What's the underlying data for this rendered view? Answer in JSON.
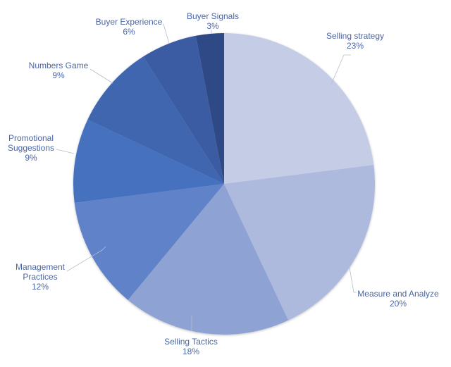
{
  "chart_data": {
    "type": "pie",
    "title": "",
    "start_angle_deg": 0,
    "direction": "clockwise",
    "categories": [
      "Selling strategy",
      "Measure and Analyze",
      "Selling Tactics",
      "Management Practices",
      "Promotional Suggestions",
      "Numbers Game",
      "Buyer Experience",
      "Buyer Signals"
    ],
    "values": [
      23,
      20,
      18,
      12,
      9,
      9,
      6,
      3
    ],
    "unit": "%",
    "colors": [
      "#c5cce6",
      "#adb9dd",
      "#8ea3d4",
      "#5f82c8",
      "#4471bf",
      "#3f66b0",
      "#3a5ba3",
      "#2f4a86"
    ],
    "legend": "none",
    "labels": [
      {
        "name": "Selling strategy",
        "pct": "23%"
      },
      {
        "name": "Measure and Analyze",
        "pct": "20%"
      },
      {
        "name": "Selling Tactics",
        "pct": "18%"
      },
      {
        "name": "Management Practices",
        "pct": "12%"
      },
      {
        "name": "Promotional Suggestions",
        "pct": "9%"
      },
      {
        "name": "Numbers Game",
        "pct": "9%"
      },
      {
        "name": "Buyer Experience",
        "pct": "6%"
      },
      {
        "name": "Buyer Signals",
        "pct": "3%"
      }
    ]
  },
  "labels": {
    "selling_strategy": {
      "line1": "Selling strategy",
      "pct": "23%"
    },
    "measure_analyze": {
      "line1": "Measure and Analyze",
      "pct": "20%"
    },
    "selling_tactics": {
      "line1": "Selling Tactics",
      "pct": "18%"
    },
    "management_practices": {
      "line1": "Management",
      "line2": "Practices",
      "pct": "12%"
    },
    "promotional_suggestions": {
      "line1": "Promotional",
      "line2": "Suggestions",
      "pct": "9%"
    },
    "numbers_game": {
      "line1": "Numbers Game",
      "pct": "9%"
    },
    "buyer_experience": {
      "line1": "Buyer Experience",
      "pct": "6%"
    },
    "buyer_signals": {
      "line1": "Buyer Signals",
      "pct": "3%"
    }
  }
}
